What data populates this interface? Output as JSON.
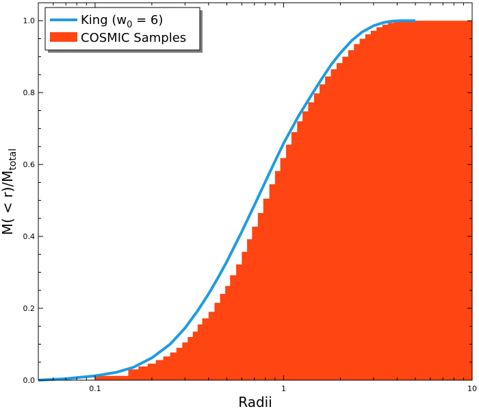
{
  "chart_data": {
    "type": "area",
    "xscale": "log",
    "xlim": [
      0.05,
      10
    ],
    "ylim": [
      0,
      1.05
    ],
    "xlabel": "Radii",
    "ylabel": "M(<r)/M_total",
    "ylabel_main": "M( < r)/M",
    "ylabel_sub": "total",
    "x_ticks": [
      {
        "value": 0.1,
        "label": "0.1"
      },
      {
        "value": 1,
        "label": "1"
      },
      {
        "value": 10,
        "label": "10"
      }
    ],
    "y_ticks": [
      {
        "value": 0.0,
        "label": "0.0"
      },
      {
        "value": 0.2,
        "label": "0.2"
      },
      {
        "value": 0.4,
        "label": "0.4"
      },
      {
        "value": 0.6,
        "label": "0.6"
      },
      {
        "value": 0.8,
        "label": "0.8"
      },
      {
        "value": 1.0,
        "label": "1.0"
      }
    ],
    "grid": false,
    "legend_position": "top-left",
    "series": [
      {
        "name": "King (w0 = 6)",
        "legend_main": "King (w",
        "legend_sub": "0",
        "legend_tail": " = 6)",
        "kind": "line",
        "color": "#1f9be2",
        "x": [
          0.05,
          0.07,
          0.1,
          0.13,
          0.16,
          0.2,
          0.25,
          0.3,
          0.35,
          0.4,
          0.45,
          0.5,
          0.6,
          0.7,
          0.8,
          0.9,
          1.0,
          1.2,
          1.4,
          1.6,
          1.8,
          2.0,
          2.3,
          2.6,
          3.0,
          3.4,
          3.8,
          4.2,
          5.0
        ],
        "y": [
          0.0,
          0.004,
          0.012,
          0.022,
          0.036,
          0.062,
          0.1,
          0.145,
          0.193,
          0.24,
          0.286,
          0.33,
          0.413,
          0.487,
          0.552,
          0.609,
          0.659,
          0.735,
          0.792,
          0.84,
          0.88,
          0.91,
          0.945,
          0.968,
          0.986,
          0.995,
          0.999,
          1.0,
          1.0
        ]
      },
      {
        "name": "COSMIC Samples",
        "kind": "histogram",
        "color": "#ff4511",
        "x": [
          0.05,
          0.1,
          0.15,
          0.17,
          0.19,
          0.21,
          0.23,
          0.25,
          0.27,
          0.29,
          0.31,
          0.33,
          0.35,
          0.37,
          0.4,
          0.43,
          0.46,
          0.49,
          0.52,
          0.56,
          0.6,
          0.64,
          0.68,
          0.73,
          0.78,
          0.84,
          0.9,
          0.96,
          1.03,
          1.1,
          1.18,
          1.26,
          1.35,
          1.45,
          1.55,
          1.66,
          1.78,
          1.91,
          2.05,
          2.2,
          2.36,
          2.53,
          2.71,
          2.9,
          3.11,
          3.34,
          3.58,
          3.84,
          4.12,
          4.42,
          10
        ],
        "y": [
          0.0,
          0.012,
          0.03,
          0.038,
          0.046,
          0.056,
          0.066,
          0.077,
          0.09,
          0.105,
          0.12,
          0.135,
          0.155,
          0.172,
          0.19,
          0.215,
          0.24,
          0.262,
          0.292,
          0.322,
          0.357,
          0.392,
          0.427,
          0.465,
          0.505,
          0.545,
          0.582,
          0.618,
          0.655,
          0.69,
          0.72,
          0.748,
          0.773,
          0.798,
          0.823,
          0.845,
          0.865,
          0.882,
          0.9,
          0.918,
          0.935,
          0.95,
          0.962,
          0.972,
          0.982,
          0.989,
          0.994,
          0.998,
          1.0,
          1.0,
          1.0
        ]
      }
    ]
  }
}
